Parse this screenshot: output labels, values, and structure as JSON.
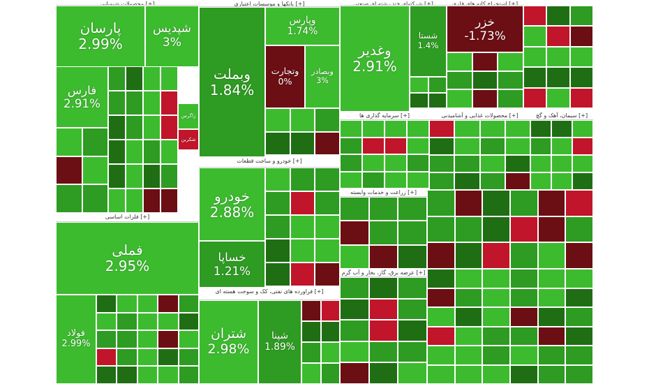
{
  "sectors": [
    {
      "title": "[+] محصولات شیمیایی",
      "tiles": [
        {
          "name": "پارسان",
          "change": "2.99%"
        },
        {
          "name": "شپدیس",
          "change": "3%"
        },
        {
          "name": "فارس",
          "change": "2.91%"
        },
        {
          "name": "زاگرس"
        },
        {
          "name": "شکربن"
        }
      ]
    },
    {
      "title": "[+] فلزات اساسی",
      "tiles": [
        {
          "name": "فملی",
          "change": "2.95%"
        },
        {
          "name": "فولاد",
          "change": "2.99%"
        }
      ]
    },
    {
      "title": "[+] بانکها و موسسات اعتباری",
      "tiles": [
        {
          "name": "وبملت",
          "change": "1.84%"
        },
        {
          "name": "وپارس",
          "change": "1.74%"
        },
        {
          "name": "وتجارت",
          "change": "0%"
        },
        {
          "name": "وبصادر",
          "change": "3%"
        }
      ]
    },
    {
      "title": "[+] خودرو و ساخت قطعات",
      "tiles": [
        {
          "name": "خودرو",
          "change": "2.88%"
        },
        {
          "name": "خساپا",
          "change": "1.21%"
        }
      ]
    },
    {
      "title": "[+] فراورده های نفتی، کک و سوخت هسته ای",
      "tiles": [
        {
          "name": "شتران",
          "change": "2.98%"
        },
        {
          "name": "شپنا",
          "change": "1.89%"
        }
      ]
    },
    {
      "title": "[+] شرکتهای چند رشته ای صنعتی",
      "tiles": [
        {
          "name": "وغدیر",
          "change": "2.91%"
        },
        {
          "name": "شستا",
          "change": "1.4%"
        }
      ]
    },
    {
      "title": "[+] استخراج کانه های فلزی",
      "tiles": [
        {
          "name": "خزر",
          "change": "-1.73%"
        }
      ]
    },
    {
      "title": "[+] سرمایه گذاری ها",
      "tiles": []
    },
    {
      "title": "[+] محصولات غذایی و آشامیدنی",
      "tiles": []
    },
    {
      "title": "[+] سیمان، آهک و گچ",
      "tiles": []
    },
    {
      "title": "[+] زراعت و خدمات وابسته",
      "tiles": []
    },
    {
      "title": "[+] عرضه برق، گاز، بخار و آب گرم",
      "tiles": []
    }
  ]
}
